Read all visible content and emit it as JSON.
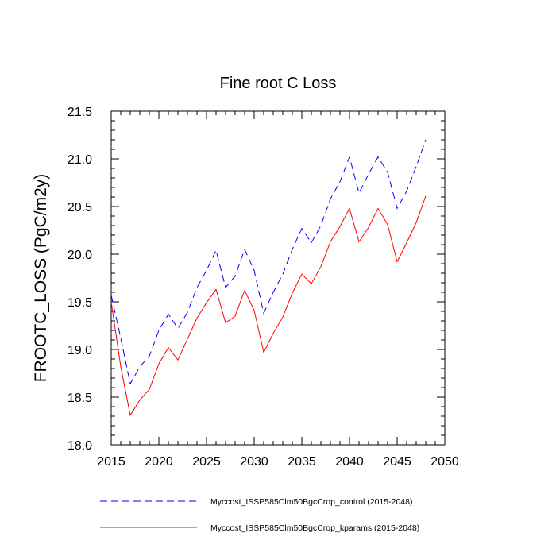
{
  "chart_data": {
    "type": "line",
    "title": "Fine root C Loss",
    "xlabel": "",
    "ylabel": "FROOTC_LOSS  (PgC/m2y)",
    "xlim": [
      2015,
      2050
    ],
    "ylim": [
      18.0,
      21.5
    ],
    "xticks": [
      "2015",
      "2020",
      "2025",
      "2030",
      "2035",
      "2040",
      "2045",
      "2050"
    ],
    "yticks": [
      "18.0",
      "18.5",
      "19.0",
      "19.5",
      "20.0",
      "20.5",
      "21.0",
      "21.5"
    ],
    "grid": false,
    "legend_position": "bottom",
    "x": [
      2015,
      2016,
      2017,
      2018,
      2019,
      2020,
      2021,
      2022,
      2023,
      2024,
      2025,
      2026,
      2027,
      2028,
      2029,
      2030,
      2031,
      2032,
      2033,
      2034,
      2035,
      2036,
      2037,
      2038,
      2039,
      2040,
      2041,
      2042,
      2043,
      2044,
      2045,
      2046,
      2047,
      2048
    ],
    "series": [
      {
        "name": "Myccost_ISSP585Clm50BgcCrop_control (2015-2048)",
        "color": "#0000ff",
        "dash": "dashed",
        "values": [
          19.57,
          19.12,
          18.64,
          18.82,
          18.93,
          19.2,
          19.37,
          19.22,
          19.39,
          19.65,
          19.83,
          20.04,
          19.65,
          19.77,
          20.05,
          19.83,
          19.38,
          19.6,
          19.79,
          20.05,
          20.27,
          20.12,
          20.3,
          20.58,
          20.76,
          21.02,
          20.64,
          20.84,
          21.02,
          20.86,
          20.48,
          20.66,
          20.92,
          21.2
        ]
      },
      {
        "name": "Myccost_ISSP585Clm50BgcCrop_kparams (2015-2048)",
        "color": "#ff0000",
        "dash": "solid",
        "values": [
          19.5,
          18.82,
          18.31,
          18.47,
          18.58,
          18.85,
          19.02,
          18.89,
          19.11,
          19.33,
          19.49,
          19.63,
          19.28,
          19.35,
          19.62,
          19.41,
          18.97,
          19.17,
          19.34,
          19.59,
          19.79,
          19.69,
          19.87,
          20.13,
          20.29,
          20.48,
          20.13,
          20.28,
          20.48,
          20.31,
          19.92,
          20.12,
          20.33,
          20.61
        ]
      }
    ]
  }
}
